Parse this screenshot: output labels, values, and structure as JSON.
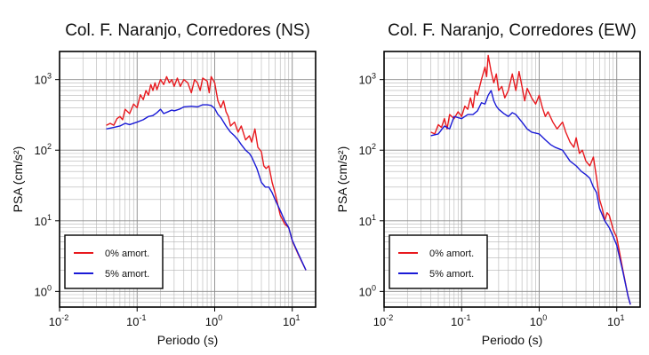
{
  "chart_data": [
    {
      "type": "line",
      "title": "Col. F. Naranjo, Corredores (NS)",
      "xlabel": "Periodo (s)",
      "ylabel": "PSA (cm/s²)",
      "x_scale": "log",
      "y_scale": "log",
      "xlim": [
        0.01,
        20
      ],
      "ylim": [
        0.6,
        2500
      ],
      "grid": true,
      "legend_position": "bottom-left",
      "x_ticks": [
        {
          "base": "10",
          "exp": "-2"
        },
        {
          "base": "10",
          "exp": "-1"
        },
        {
          "base": "10",
          "exp": "0"
        },
        {
          "base": "10",
          "exp": "1"
        }
      ],
      "y_ticks": [
        {
          "base": "10",
          "exp": "0"
        },
        {
          "base": "10",
          "exp": "1"
        },
        {
          "base": "10",
          "exp": "2"
        },
        {
          "base": "10",
          "exp": "3"
        }
      ],
      "series": [
        {
          "name": "0% amort.",
          "color": "#e8191e",
          "points": [
            [
              0.04,
              225
            ],
            [
              0.045,
              240
            ],
            [
              0.05,
              225
            ],
            [
              0.055,
              280
            ],
            [
              0.06,
              300
            ],
            [
              0.065,
              270
            ],
            [
              0.07,
              380
            ],
            [
              0.08,
              330
            ],
            [
              0.09,
              450
            ],
            [
              0.1,
              400
            ],
            [
              0.11,
              610
            ],
            [
              0.12,
              520
            ],
            [
              0.13,
              700
            ],
            [
              0.14,
              600
            ],
            [
              0.15,
              850
            ],
            [
              0.16,
              700
            ],
            [
              0.17,
              900
            ],
            [
              0.18,
              720
            ],
            [
              0.2,
              1000
            ],
            [
              0.22,
              850
            ],
            [
              0.24,
              1100
            ],
            [
              0.26,
              900
            ],
            [
              0.28,
              1000
            ],
            [
              0.3,
              800
            ],
            [
              0.33,
              1050
            ],
            [
              0.36,
              800
            ],
            [
              0.4,
              1000
            ],
            [
              0.45,
              900
            ],
            [
              0.5,
              650
            ],
            [
              0.55,
              1000
            ],
            [
              0.6,
              900
            ],
            [
              0.65,
              700
            ],
            [
              0.7,
              1050
            ],
            [
              0.8,
              950
            ],
            [
              0.85,
              650
            ],
            [
              0.9,
              1100
            ],
            [
              1.0,
              900
            ],
            [
              1.1,
              500
            ],
            [
              1.2,
              400
            ],
            [
              1.3,
              500
            ],
            [
              1.4,
              350
            ],
            [
              1.5,
              300
            ],
            [
              1.6,
              220
            ],
            [
              1.8,
              250
            ],
            [
              2.0,
              180
            ],
            [
              2.2,
              220
            ],
            [
              2.5,
              140
            ],
            [
              2.8,
              160
            ],
            [
              3.0,
              130
            ],
            [
              3.3,
              200
            ],
            [
              3.6,
              110
            ],
            [
              4.0,
              95
            ],
            [
              4.3,
              60
            ],
            [
              4.6,
              55
            ],
            [
              5.0,
              60
            ],
            [
              5.5,
              35
            ],
            [
              6.0,
              25
            ],
            [
              7.0,
              12
            ],
            [
              8.0,
              9
            ],
            [
              9.0,
              8
            ],
            [
              10.0,
              5.2
            ],
            [
              12.0,
              3.3
            ],
            [
              15.0,
              2.0
            ]
          ]
        },
        {
          "name": "5% amort.",
          "color": "#1a1ad6",
          "points": [
            [
              0.04,
              200
            ],
            [
              0.05,
              210
            ],
            [
              0.06,
              220
            ],
            [
              0.07,
              240
            ],
            [
              0.08,
              230
            ],
            [
              0.1,
              250
            ],
            [
              0.12,
              270
            ],
            [
              0.14,
              300
            ],
            [
              0.16,
              310
            ],
            [
              0.18,
              340
            ],
            [
              0.2,
              380
            ],
            [
              0.22,
              330
            ],
            [
              0.25,
              350
            ],
            [
              0.28,
              370
            ],
            [
              0.3,
              360
            ],
            [
              0.35,
              380
            ],
            [
              0.4,
              410
            ],
            [
              0.5,
              420
            ],
            [
              0.6,
              410
            ],
            [
              0.7,
              440
            ],
            [
              0.8,
              440
            ],
            [
              0.9,
              430
            ],
            [
              1.0,
              390
            ],
            [
              1.1,
              320
            ],
            [
              1.2,
              290
            ],
            [
              1.4,
              220
            ],
            [
              1.6,
              180
            ],
            [
              1.8,
              160
            ],
            [
              2.0,
              140
            ],
            [
              2.2,
              120
            ],
            [
              2.5,
              100
            ],
            [
              2.8,
              90
            ],
            [
              3.0,
              80
            ],
            [
              3.5,
              55
            ],
            [
              4.0,
              35
            ],
            [
              4.5,
              30
            ],
            [
              5.0,
              30
            ],
            [
              5.5,
              25
            ],
            [
              6.0,
              20
            ],
            [
              7.0,
              14
            ],
            [
              8.0,
              10
            ],
            [
              9.0,
              8
            ],
            [
              10.0,
              5.3
            ],
            [
              12.0,
              3.4
            ],
            [
              15.0,
              2.0
            ]
          ]
        }
      ]
    },
    {
      "type": "line",
      "title": "Col. F. Naranjo, Corredores (EW)",
      "xlabel": "Periodo (s)",
      "ylabel": "PSA (cm/s²)",
      "x_scale": "log",
      "y_scale": "log",
      "xlim": [
        0.01,
        20
      ],
      "ylim": [
        0.6,
        2500
      ],
      "grid": true,
      "legend_position": "bottom-left",
      "x_ticks": [
        {
          "base": "10",
          "exp": "-2"
        },
        {
          "base": "10",
          "exp": "-1"
        },
        {
          "base": "10",
          "exp": "0"
        },
        {
          "base": "10",
          "exp": "1"
        }
      ],
      "y_ticks": [
        {
          "base": "10",
          "exp": "0"
        },
        {
          "base": "10",
          "exp": "1"
        },
        {
          "base": "10",
          "exp": "2"
        },
        {
          "base": "10",
          "exp": "3"
        }
      ],
      "series": [
        {
          "name": "0% amort.",
          "color": "#e8191e",
          "points": [
            [
              0.04,
              180
            ],
            [
              0.045,
              170
            ],
            [
              0.05,
              230
            ],
            [
              0.055,
              210
            ],
            [
              0.06,
              280
            ],
            [
              0.065,
              200
            ],
            [
              0.07,
              320
            ],
            [
              0.08,
              280
            ],
            [
              0.09,
              350
            ],
            [
              0.1,
              300
            ],
            [
              0.11,
              420
            ],
            [
              0.12,
              380
            ],
            [
              0.13,
              550
            ],
            [
              0.14,
              400
            ],
            [
              0.15,
              700
            ],
            [
              0.16,
              600
            ],
            [
              0.18,
              1000
            ],
            [
              0.2,
              1500
            ],
            [
              0.21,
              1100
            ],
            [
              0.22,
              2200
            ],
            [
              0.24,
              1300
            ],
            [
              0.26,
              900
            ],
            [
              0.28,
              1200
            ],
            [
              0.3,
              700
            ],
            [
              0.33,
              800
            ],
            [
              0.36,
              550
            ],
            [
              0.4,
              700
            ],
            [
              0.45,
              1200
            ],
            [
              0.5,
              700
            ],
            [
              0.55,
              1300
            ],
            [
              0.6,
              800
            ],
            [
              0.65,
              500
            ],
            [
              0.7,
              750
            ],
            [
              0.8,
              550
            ],
            [
              0.9,
              450
            ],
            [
              1.0,
              600
            ],
            [
              1.1,
              400
            ],
            [
              1.2,
              300
            ],
            [
              1.3,
              350
            ],
            [
              1.5,
              250
            ],
            [
              1.7,
              200
            ],
            [
              2.0,
              250
            ],
            [
              2.2,
              180
            ],
            [
              2.5,
              130
            ],
            [
              2.8,
              110
            ],
            [
              3.0,
              150
            ],
            [
              3.3,
              90
            ],
            [
              3.6,
              100
            ],
            [
              4.0,
              70
            ],
            [
              4.5,
              60
            ],
            [
              5.0,
              80
            ],
            [
              5.5,
              40
            ],
            [
              6.0,
              20
            ],
            [
              6.5,
              15
            ],
            [
              7.0,
              10
            ],
            [
              7.5,
              13
            ],
            [
              8.0,
              12
            ],
            [
              9.0,
              7.5
            ],
            [
              10.0,
              5.8
            ],
            [
              12.0,
              2.0
            ],
            [
              14.0,
              0.85
            ],
            [
              15.0,
              0.65
            ]
          ]
        },
        {
          "name": "5% amort.",
          "color": "#1a1ad6",
          "points": [
            [
              0.04,
              160
            ],
            [
              0.05,
              170
            ],
            [
              0.06,
              220
            ],
            [
              0.07,
              200
            ],
            [
              0.08,
              300
            ],
            [
              0.1,
              280
            ],
            [
              0.12,
              320
            ],
            [
              0.14,
              320
            ],
            [
              0.16,
              360
            ],
            [
              0.18,
              470
            ],
            [
              0.2,
              450
            ],
            [
              0.22,
              600
            ],
            [
              0.24,
              700
            ],
            [
              0.26,
              500
            ],
            [
              0.28,
              420
            ],
            [
              0.3,
              380
            ],
            [
              0.35,
              330
            ],
            [
              0.4,
              300
            ],
            [
              0.45,
              340
            ],
            [
              0.5,
              320
            ],
            [
              0.6,
              250
            ],
            [
              0.7,
              200
            ],
            [
              0.8,
              180
            ],
            [
              1.0,
              170
            ],
            [
              1.2,
              140
            ],
            [
              1.4,
              120
            ],
            [
              1.6,
              110
            ],
            [
              2.0,
              100
            ],
            [
              2.5,
              70
            ],
            [
              3.0,
              60
            ],
            [
              3.5,
              50
            ],
            [
              4.0,
              45
            ],
            [
              4.5,
              40
            ],
            [
              5.0,
              30
            ],
            [
              5.5,
              25
            ],
            [
              6.0,
              15
            ],
            [
              7.0,
              10
            ],
            [
              8.0,
              8
            ],
            [
              9.0,
              6
            ],
            [
              10.0,
              4.5
            ],
            [
              12.0,
              1.9
            ],
            [
              14.0,
              0.85
            ],
            [
              15.0,
              0.65
            ]
          ]
        }
      ]
    }
  ]
}
